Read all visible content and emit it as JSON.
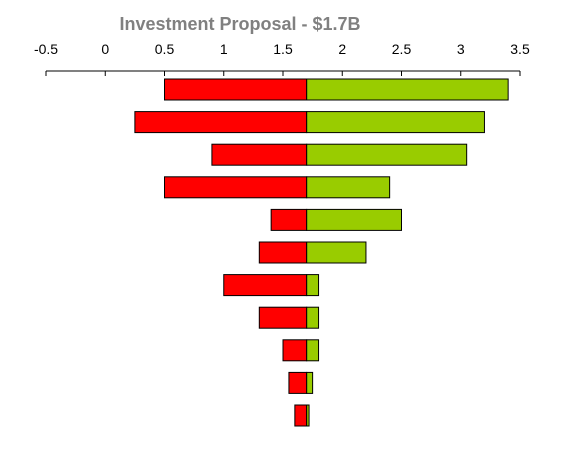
{
  "chart_data": {
    "type": "bar",
    "orientation": "horizontal",
    "title": "Investment Proposal  - $1.7B",
    "base": 1.7,
    "xlim": [
      -0.5,
      3.5
    ],
    "xticks": [
      "-0.5",
      "0",
      "0.5",
      "1",
      "1.5",
      "2",
      "2.5",
      "3",
      "3.5"
    ],
    "axis_position": "top",
    "grid": false,
    "legend": "none",
    "colors": {
      "low": "#ff0000",
      "high": "#99cc00",
      "edge": "#000000",
      "axis": "#000000"
    },
    "bars": [
      {
        "low": 0.5,
        "high": 3.4
      },
      {
        "low": 0.25,
        "high": 3.2
      },
      {
        "low": 0.9,
        "high": 3.05
      },
      {
        "low": 0.5,
        "high": 2.4
      },
      {
        "low": 1.4,
        "high": 2.5
      },
      {
        "low": 1.3,
        "high": 2.2
      },
      {
        "low": 1.0,
        "high": 1.8
      },
      {
        "low": 1.3,
        "high": 1.8
      },
      {
        "low": 1.5,
        "high": 1.8
      },
      {
        "low": 1.55,
        "high": 1.75
      },
      {
        "low": 1.6,
        "high": 1.72
      }
    ]
  }
}
